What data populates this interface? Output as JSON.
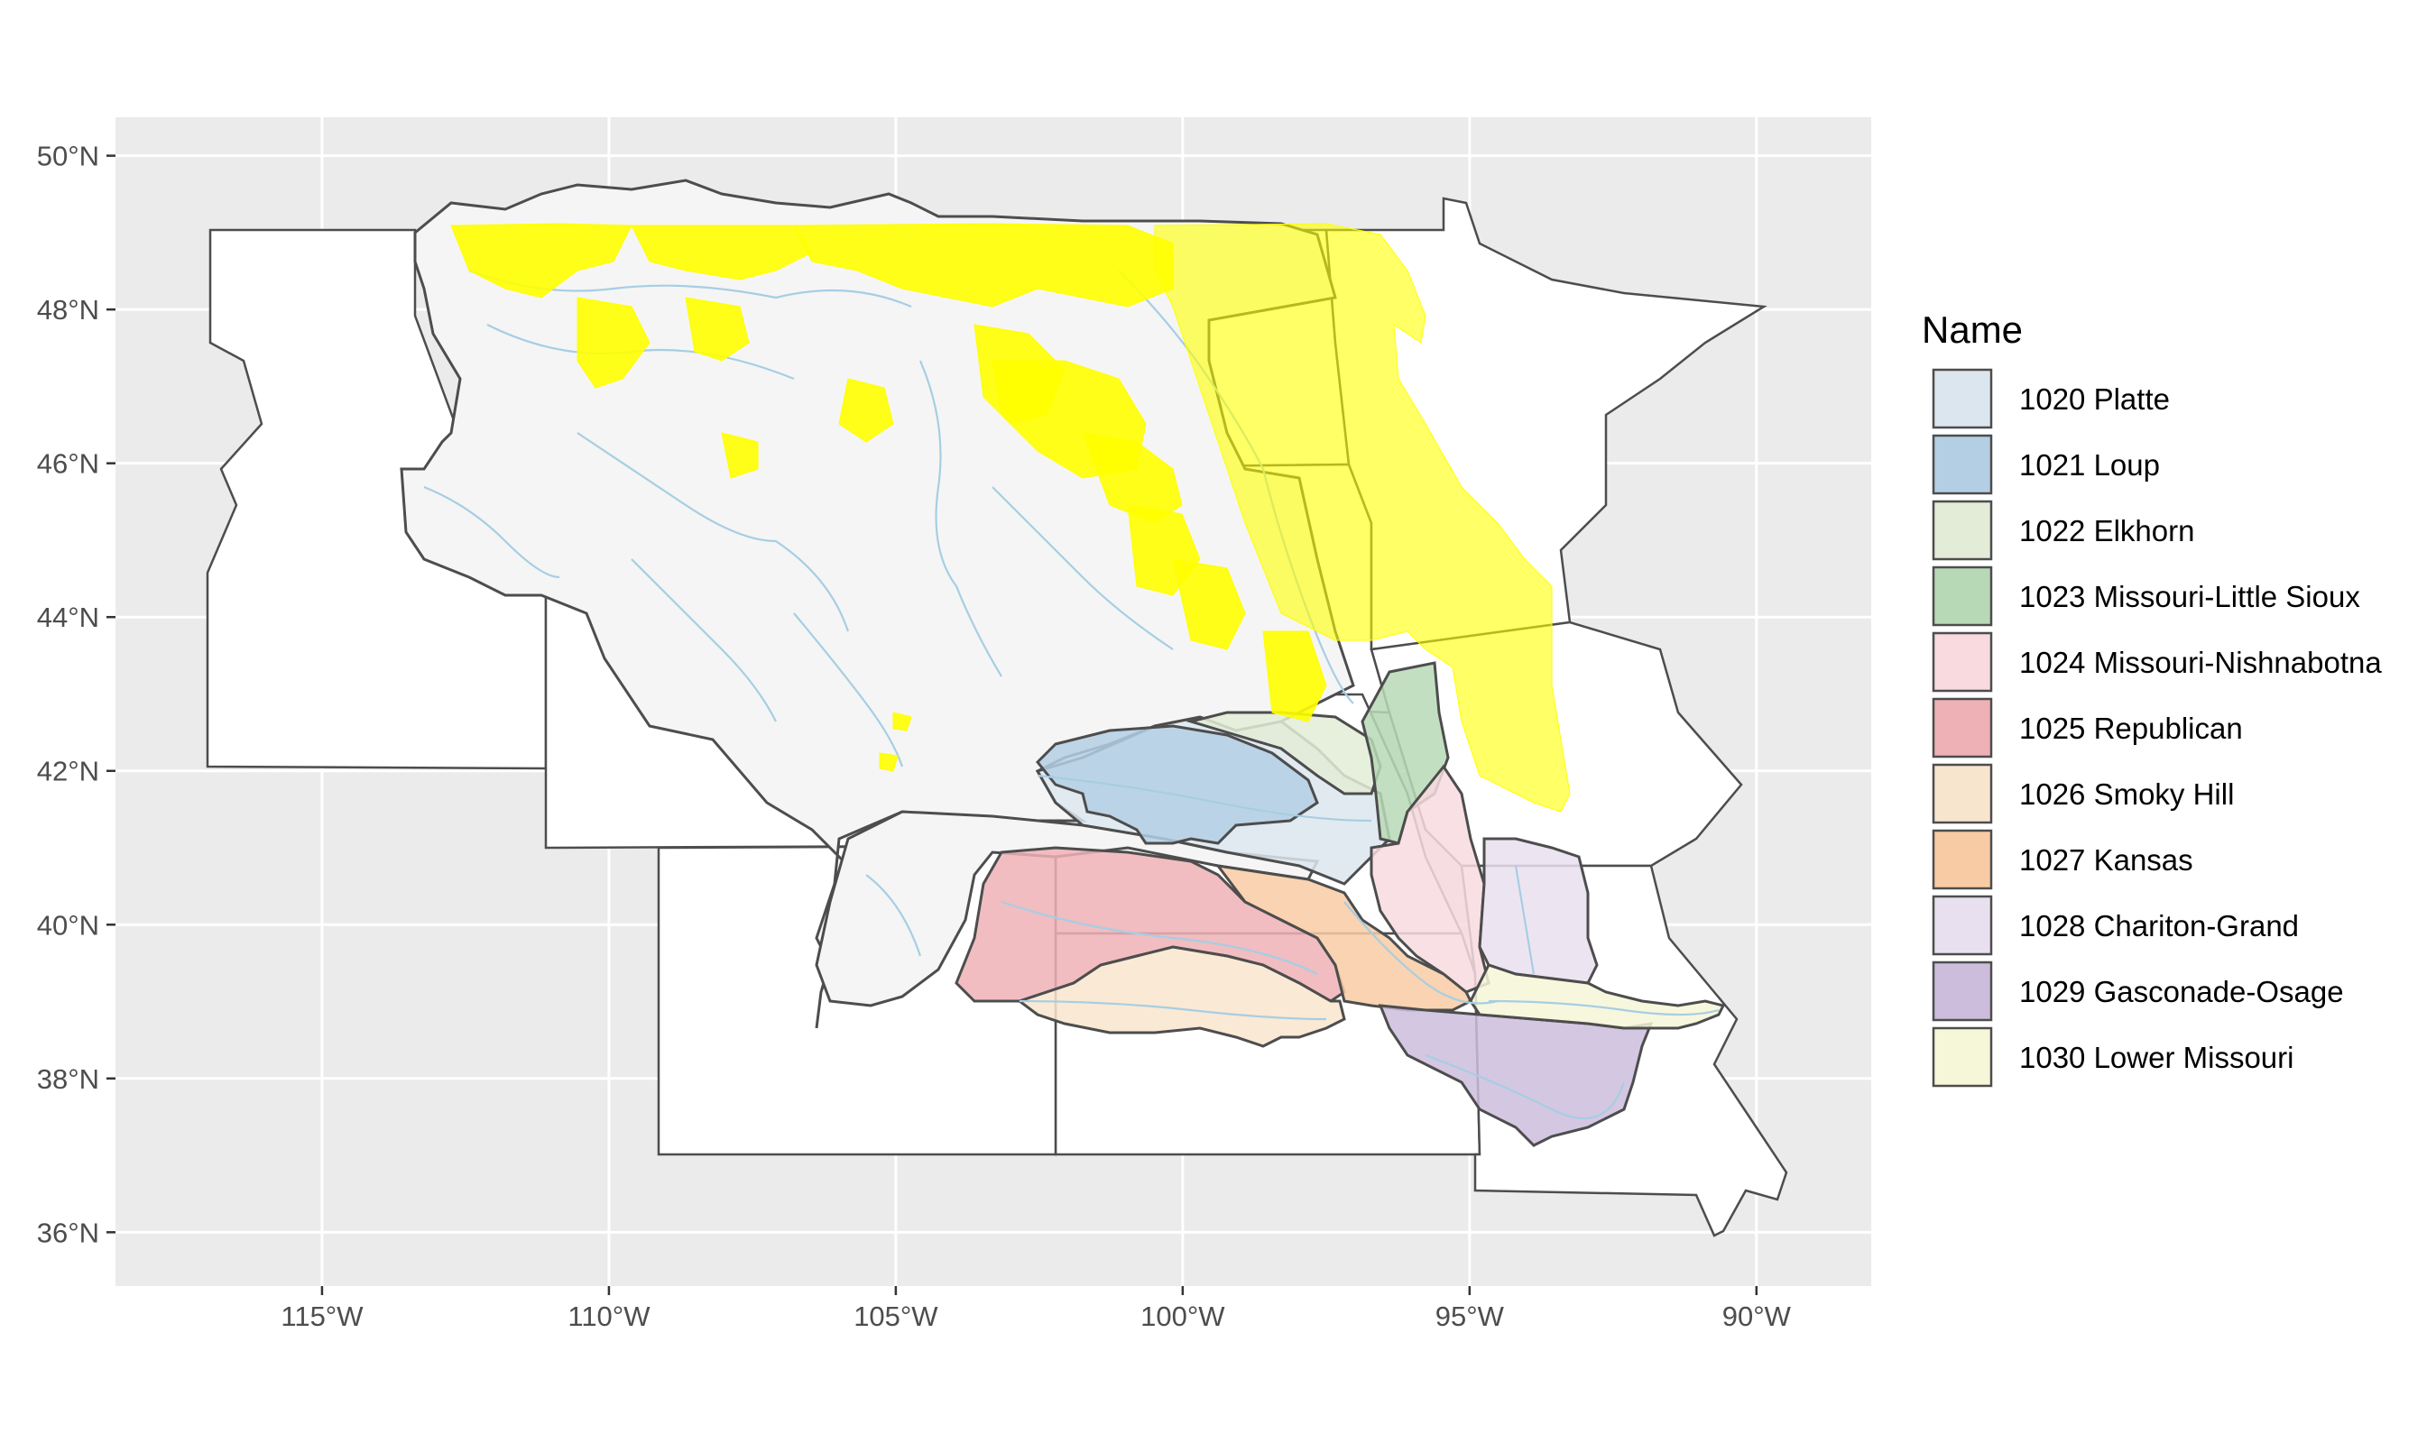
{
  "map": {
    "x_ticks": [
      {
        "value": -115,
        "label": "115°W"
      },
      {
        "value": -110,
        "label": "110°W"
      },
      {
        "value": -105,
        "label": "105°W"
      },
      {
        "value": -100,
        "label": "100°W"
      },
      {
        "value": -95,
        "label": "95°W"
      },
      {
        "value": -90,
        "label": "90°W"
      }
    ],
    "y_ticks": [
      {
        "value": 50,
        "label": "50°N"
      },
      {
        "value": 48,
        "label": "48°N"
      },
      {
        "value": 46,
        "label": "46°N"
      },
      {
        "value": 44,
        "label": "44°N"
      },
      {
        "value": 42,
        "label": "42°N"
      },
      {
        "value": 40,
        "label": "40°N"
      },
      {
        "value": 38,
        "label": "38°N"
      },
      {
        "value": 36,
        "label": "36°N"
      }
    ],
    "xlim": [
      -118.6,
      -88.0
    ],
    "ylim": [
      35.3,
      50.5
    ],
    "panel_background": "#ebebeb",
    "grid_color": "#ffffff",
    "river_color": "#a6cee3",
    "highlight_color": "#ffff00"
  },
  "legend": {
    "title": "Name",
    "items": [
      {
        "label": "1020 Platte",
        "color": "#dce6ee"
      },
      {
        "label": "1021 Loup",
        "color": "#b4cfe4"
      },
      {
        "label": "1022 Elkhorn",
        "color": "#e3ecd7"
      },
      {
        "label": "1023 Missouri-Little Sioux",
        "color": "#b8d9b6"
      },
      {
        "label": "1024 Missouri-Nishnabotna",
        "color": "#f8dadf"
      },
      {
        "label": "1025 Republican",
        "color": "#eeb1b6"
      },
      {
        "label": "1026 Smoky Hill",
        "color": "#f8e5ce"
      },
      {
        "label": "1027 Kansas",
        "color": "#f8cba5"
      },
      {
        "label": "1028 Chariton-Grand",
        "color": "#e9e0ef"
      },
      {
        "label": "1029 Gasconade-Osage",
        "color": "#cdbddd"
      },
      {
        "label": "1030 Lower Missouri",
        "color": "#f6f6d8"
      }
    ]
  }
}
